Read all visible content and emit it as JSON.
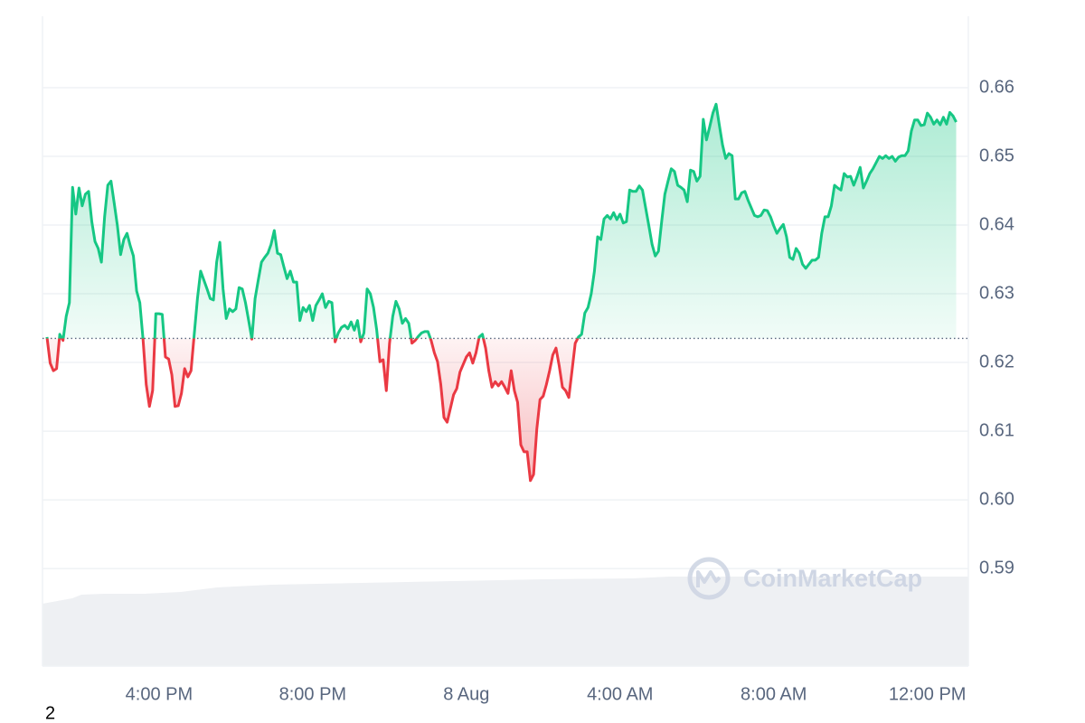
{
  "chart_data": {
    "type": "line",
    "annotation": "2",
    "watermark": "CoinMarketCap",
    "reference_line": 0.6235,
    "xlim": [
      778,
      2224
    ],
    "xticks": [
      {
        "value": 960,
        "label": "4:00 PM"
      },
      {
        "value": 1200,
        "label": "8:00 PM"
      },
      {
        "value": 1440,
        "label": "8 Aug"
      },
      {
        "value": 1680,
        "label": "4:00 AM"
      },
      {
        "value": 1920,
        "label": "8:00 AM"
      },
      {
        "value": 2160,
        "label": "12:00 PM"
      }
    ],
    "ylim": [
      0.5758,
      0.6704
    ],
    "yticks": [
      0.59,
      {
        "value": 0.6,
        "label": "0.60"
      },
      0.61,
      0.62,
      0.63,
      0.64,
      0.65,
      0.66
    ],
    "grid": true,
    "x": [
      785,
      790,
      795,
      800,
      805,
      810,
      815,
      820,
      825,
      830,
      835,
      840,
      845,
      850,
      855,
      860,
      865,
      870,
      875,
      880,
      885,
      890,
      895,
      900,
      905,
      910,
      915,
      920,
      925,
      930,
      935,
      940,
      945,
      950,
      955,
      960,
      965,
      970,
      975,
      980,
      985,
      990,
      995,
      1000,
      1005,
      1010,
      1015,
      1020,
      1025,
      1030,
      1035,
      1040,
      1045,
      1050,
      1055,
      1060,
      1065,
      1070,
      1075,
      1080,
      1085,
      1090,
      1095,
      1100,
      1105,
      1110,
      1115,
      1120,
      1125,
      1130,
      1135,
      1140,
      1145,
      1150,
      1155,
      1160,
      1165,
      1170,
      1175,
      1180,
      1185,
      1190,
      1195,
      1200,
      1205,
      1210,
      1215,
      1220,
      1225,
      1230,
      1235,
      1240,
      1245,
      1250,
      1255,
      1260,
      1265,
      1270,
      1275,
      1280,
      1285,
      1290,
      1295,
      1300,
      1305,
      1310,
      1315,
      1320,
      1325,
      1330,
      1335,
      1340,
      1345,
      1350,
      1355,
      1360,
      1365,
      1370,
      1375,
      1380,
      1385,
      1390,
      1395,
      1400,
      1405,
      1410,
      1415,
      1420,
      1425,
      1430,
      1435,
      1440,
      1445,
      1450,
      1455,
      1460,
      1465,
      1470,
      1475,
      1480,
      1485,
      1490,
      1495,
      1500,
      1505,
      1510,
      1515,
      1520,
      1525,
      1530,
      1535,
      1540,
      1545,
      1550,
      1555,
      1560,
      1565,
      1570,
      1575,
      1580,
      1585,
      1590,
      1595,
      1600,
      1605,
      1610,
      1615,
      1620,
      1625,
      1630,
      1635,
      1640,
      1645,
      1650,
      1655,
      1660,
      1665,
      1670,
      1675,
      1680,
      1685,
      1690,
      1695,
      1700,
      1705,
      1710,
      1715,
      1720,
      1725,
      1730,
      1735,
      1740,
      1745,
      1750,
      1755,
      1760,
      1765,
      1770,
      1775,
      1780,
      1785,
      1790,
      1795,
      1800,
      1805,
      1810,
      1815,
      1820,
      1825,
      1830,
      1835,
      1840,
      1845,
      1850,
      1855,
      1860,
      1865,
      1870,
      1875,
      1880,
      1885,
      1890,
      1895,
      1900,
      1905,
      1910,
      1915,
      1920,
      1925,
      1930,
      1935,
      1940,
      1945,
      1950,
      1955,
      1960,
      1965,
      1970,
      1975,
      1980,
      1985,
      1990,
      1995,
      2000,
      2005,
      2010,
      2015,
      2020,
      2025,
      2030,
      2035,
      2040,
      2045,
      2050,
      2055,
      2060,
      2065,
      2070,
      2075,
      2080,
      2085,
      2090,
      2095,
      2100,
      2105,
      2110,
      2115,
      2120,
      2125,
      2130,
      2135,
      2140,
      2145,
      2150,
      2155,
      2160,
      2165,
      2170,
      2175,
      2180,
      2185,
      2190,
      2195,
      2200,
      2205
    ],
    "series": [
      {
        "color": "#16c784",
        "negative_color": "#ea3943",
        "values": [
          0.6237,
          0.6199,
          0.6188,
          0.6191,
          0.6241,
          0.6232,
          0.6267,
          0.6287,
          0.6455,
          0.6416,
          0.6454,
          0.6428,
          0.6445,
          0.6449,
          0.6405,
          0.6376,
          0.6366,
          0.6346,
          0.6412,
          0.6458,
          0.6464,
          0.6432,
          0.6399,
          0.6357,
          0.6379,
          0.6388,
          0.637,
          0.6355,
          0.6304,
          0.6287,
          0.6234,
          0.6168,
          0.6136,
          0.6159,
          0.6271,
          0.6271,
          0.627,
          0.6208,
          0.6205,
          0.6182,
          0.6136,
          0.6137,
          0.6155,
          0.6191,
          0.6179,
          0.6188,
          0.6241,
          0.6293,
          0.6333,
          0.632,
          0.6307,
          0.6293,
          0.6291,
          0.6346,
          0.6375,
          0.6307,
          0.6264,
          0.6278,
          0.6274,
          0.6278,
          0.6309,
          0.6307,
          0.6287,
          0.6261,
          0.6234,
          0.6293,
          0.632,
          0.6346,
          0.6353,
          0.6359,
          0.6372,
          0.6392,
          0.6359,
          0.6357,
          0.6339,
          0.6322,
          0.6333,
          0.6317,
          0.6317,
          0.6261,
          0.628,
          0.6274,
          0.6283,
          0.6261,
          0.6283,
          0.6291,
          0.63,
          0.628,
          0.6289,
          0.6287,
          0.623,
          0.6243,
          0.6251,
          0.6254,
          0.6249,
          0.6259,
          0.6247,
          0.6261,
          0.623,
          0.6243,
          0.6307,
          0.63,
          0.628,
          0.6247,
          0.6201,
          0.6204,
          0.6159,
          0.6228,
          0.6267,
          0.6289,
          0.6278,
          0.6257,
          0.6264,
          0.6257,
          0.6228,
          0.6232,
          0.6238,
          0.6243,
          0.6245,
          0.6245,
          0.6232,
          0.6214,
          0.6201,
          0.6168,
          0.612,
          0.6113,
          0.6133,
          0.6153,
          0.6162,
          0.6186,
          0.6197,
          0.6208,
          0.6214,
          0.6199,
          0.6214,
          0.6237,
          0.6241,
          0.6221,
          0.6188,
          0.6164,
          0.6172,
          0.6166,
          0.6172,
          0.6164,
          0.6155,
          0.6188,
          0.6159,
          0.6142,
          0.608,
          0.607,
          0.607,
          0.6028,
          0.6037,
          0.6103,
          0.6146,
          0.6151,
          0.6168,
          0.6188,
          0.6211,
          0.6221,
          0.6195,
          0.6164,
          0.6159,
          0.6149,
          0.6188,
          0.6228,
          0.6237,
          0.6241,
          0.6272,
          0.628,
          0.63,
          0.6333,
          0.6383,
          0.6379,
          0.6409,
          0.6414,
          0.6409,
          0.6418,
          0.6408,
          0.6416,
          0.6403,
          0.6405,
          0.6451,
          0.6449,
          0.6449,
          0.6457,
          0.6451,
          0.6425,
          0.6399,
          0.6372,
          0.6355,
          0.6362,
          0.6405,
          0.6445,
          0.6464,
          0.6482,
          0.6478,
          0.6458,
          0.6455,
          0.6451,
          0.6434,
          0.648,
          0.6478,
          0.6464,
          0.6471,
          0.6554,
          0.6524,
          0.6543,
          0.6563,
          0.6576,
          0.6546,
          0.6517,
          0.6497,
          0.6504,
          0.6501,
          0.6438,
          0.6438,
          0.6447,
          0.6449,
          0.6436,
          0.6425,
          0.6414,
          0.6412,
          0.6414,
          0.6422,
          0.6421,
          0.6412,
          0.6399,
          0.6388,
          0.6395,
          0.6401,
          0.6383,
          0.6353,
          0.635,
          0.6366,
          0.6359,
          0.6343,
          0.6337,
          0.6343,
          0.6349,
          0.6349,
          0.6353,
          0.6388,
          0.6412,
          0.6412,
          0.6428,
          0.6458,
          0.6454,
          0.6451,
          0.6475,
          0.647,
          0.6471,
          0.6458,
          0.647,
          0.6484,
          0.6454,
          0.6464,
          0.6475,
          0.6482,
          0.6491,
          0.65,
          0.6497,
          0.6501,
          0.6497,
          0.65,
          0.6493,
          0.6499,
          0.6501,
          0.6501,
          0.6508,
          0.6537,
          0.6553,
          0.6553,
          0.6545,
          0.6546,
          0.6563,
          0.6557,
          0.6547,
          0.6553,
          0.6546,
          0.6557,
          0.6547,
          0.6564,
          0.6559,
          0.655
        ]
      }
    ]
  }
}
